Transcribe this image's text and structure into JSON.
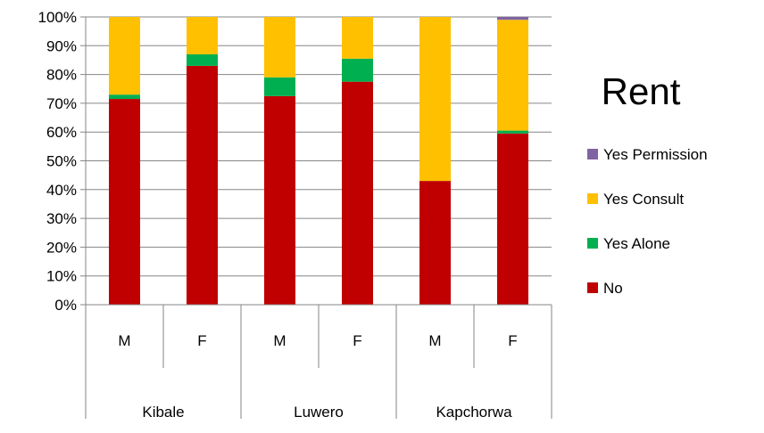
{
  "chart_data": {
    "type": "bar",
    "stacked": true,
    "percent": true,
    "title": "Rent",
    "categories": [
      "M",
      "F",
      "M",
      "F",
      "M",
      "F"
    ],
    "groups": [
      {
        "label": "Kibale",
        "span": 2
      },
      {
        "label": "Luwero",
        "span": 2
      },
      {
        "label": "Kapchorwa",
        "span": 2
      }
    ],
    "series": [
      {
        "name": "No",
        "color": "#C00000",
        "values": [
          71.5,
          83,
          72.5,
          77.5,
          43,
          59.5
        ]
      },
      {
        "name": "Yes Alone",
        "color": "#00B050",
        "values": [
          1.5,
          4,
          6.5,
          8,
          0,
          1
        ]
      },
      {
        "name": "Yes Consult",
        "color": "#FFC000",
        "values": [
          27,
          13,
          21,
          14.5,
          57,
          38.5
        ]
      },
      {
        "name": "Yes Permission",
        "color": "#8064A2",
        "values": [
          0,
          0,
          0,
          0,
          0,
          1
        ]
      }
    ],
    "ylim": [
      0,
      100
    ],
    "yticks": [
      "0%",
      "10%",
      "20%",
      "30%",
      "40%",
      "50%",
      "60%",
      "70%",
      "80%",
      "90%",
      "100%"
    ],
    "grid": true,
    "legend_position": "right",
    "legend_order": [
      "Yes Permission",
      "Yes Consult",
      "Yes Alone",
      "No"
    ]
  }
}
